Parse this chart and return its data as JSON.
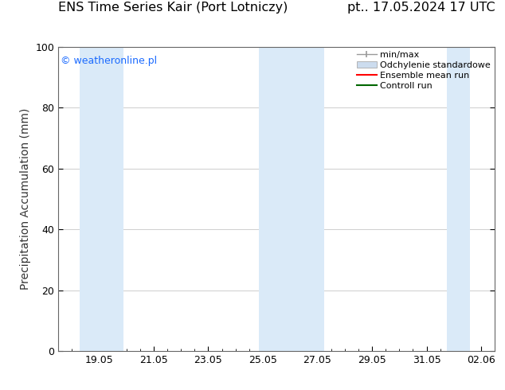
{
  "title_left": "ENS Time Series Kair (Port Lotniczy)",
  "title_right": "pt.. 17.05.2024 17 UTC",
  "ylabel": "Precipitation Accumulation (mm)",
  "ylim": [
    0,
    100
  ],
  "yticks": [
    0,
    20,
    40,
    60,
    80,
    100
  ],
  "background_color": "#ffffff",
  "plot_bg_color": "#ffffff",
  "watermark": "© weatheronline.pl",
  "watermark_color": "#1a6aff",
  "legend_labels": [
    "min/max",
    "Odchylenie standardowe",
    "Ensemble mean run",
    "Controll run"
  ],
  "shaded_bands": [
    {
      "x_start": 18.3,
      "x_end": 19.9,
      "color": "#daeaf8"
    },
    {
      "x_start": 24.85,
      "x_end": 27.25,
      "color": "#daeaf8"
    },
    {
      "x_start": 31.75,
      "x_end": 32.6,
      "color": "#daeaf8"
    }
  ],
  "xtick_labels": [
    "19.05",
    "21.05",
    "23.05",
    "25.05",
    "27.05",
    "29.05",
    "31.05",
    "02.06"
  ],
  "xtick_positions": [
    19.0,
    21.0,
    23.0,
    25.0,
    27.0,
    29.0,
    31.0,
    33.0
  ],
  "xlim": [
    17.5,
    33.5
  ],
  "grid_color": "#bbbbbb",
  "tick_color": "#000000",
  "title_fontsize": 11.5,
  "label_fontsize": 10,
  "tick_fontsize": 9,
  "legend_fontsize": 8,
  "watermark_fontsize": 9
}
